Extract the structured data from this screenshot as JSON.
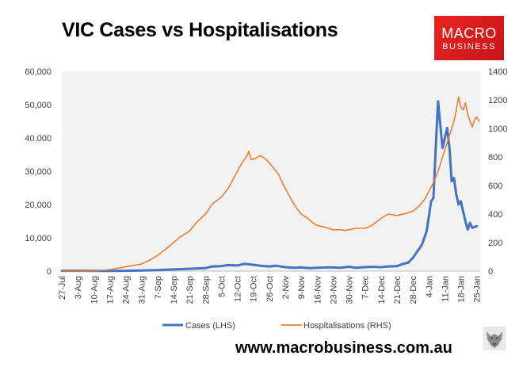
{
  "header": {
    "title": "VIC Cases vs Hospitalisations",
    "logo_line1": "MACRO",
    "logo_line2": "BUSINESS"
  },
  "footer": {
    "website": "www.macrobusiness.com.au"
  },
  "colors": {
    "cases": "#4472c4",
    "hospitalisations": "#ed7d31",
    "plot_bg": "#f2f2f2",
    "logo": "#e2231a"
  },
  "chart_data": {
    "type": "line",
    "title": "VIC Cases vs Hospitalisations",
    "x_tick_labels": [
      "27-Jul",
      "3-Aug",
      "10-Aug",
      "17-Aug",
      "24-Aug",
      "31-Aug",
      "7-Sep",
      "14-Sep",
      "21-Sep",
      "28-Sep",
      "5-Oct",
      "12-Oct",
      "19-Oct",
      "26-Oct",
      "2-Nov",
      "9-Nov",
      "16-Nov",
      "23-Nov",
      "30-Nov",
      "7-Dec",
      "14-Dec",
      "21-Dec",
      "28-Dec",
      "4-Jan",
      "11-Jan",
      "18-Jan",
      "25-Jan"
    ],
    "y_left": {
      "label": "",
      "range": [
        0,
        60000
      ],
      "ticks": [
        "0",
        "10,000",
        "20,000",
        "30,000",
        "40,000",
        "50,000",
        "60,000"
      ]
    },
    "y_right": {
      "label": "",
      "range": [
        0,
        1400
      ],
      "ticks": [
        "0",
        "200",
        "400",
        "600",
        "800",
        "1000",
        "1200",
        "1400"
      ]
    },
    "grid": false,
    "legend": {
      "placement": "bottom",
      "entries": [
        "Cases (LHS)",
        "Hospitalisations (RHS)"
      ]
    },
    "series": [
      {
        "name": "Cases (LHS)",
        "axis": "left",
        "points": [
          [
            "27-Jul",
            100
          ],
          [
            "3-Aug",
            100
          ],
          [
            "10-Aug",
            50
          ],
          [
            "17-Aug",
            40
          ],
          [
            "24-Aug",
            100
          ],
          [
            "31-Aug",
            200
          ],
          [
            "7-Sep",
            300
          ],
          [
            "14-Sep",
            500
          ],
          [
            "21-Sep",
            700
          ],
          [
            "28-Sep",
            900
          ],
          [
            "1-Oct",
            1400
          ],
          [
            "5-Oct",
            1500
          ],
          [
            "8-Oct",
            1800
          ],
          [
            "12-Oct",
            1700
          ],
          [
            "15-Oct",
            2200
          ],
          [
            "19-Oct",
            1900
          ],
          [
            "22-Oct",
            1600
          ],
          [
            "26-Oct",
            1400
          ],
          [
            "29-Oct",
            1600
          ],
          [
            "2-Nov",
            1200
          ],
          [
            "6-Nov",
            1000
          ],
          [
            "9-Nov",
            1100
          ],
          [
            "13-Nov",
            900
          ],
          [
            "16-Nov",
            1000
          ],
          [
            "20-Nov",
            1100
          ],
          [
            "23-Nov",
            1100
          ],
          [
            "26-Nov",
            1000
          ],
          [
            "30-Nov",
            1300
          ],
          [
            "3-Dec",
            1000
          ],
          [
            "7-Dec",
            1200
          ],
          [
            "10-Dec",
            1300
          ],
          [
            "14-Dec",
            1200
          ],
          [
            "17-Dec",
            1400
          ],
          [
            "21-Dec",
            1500
          ],
          [
            "23-Dec",
            2000
          ],
          [
            "26-Dec",
            2600
          ],
          [
            "28-Dec",
            4000
          ],
          [
            "30-Dec",
            6000
          ],
          [
            "1-Jan",
            8000
          ],
          [
            "3-Jan",
            12000
          ],
          [
            "5-Jan",
            21000
          ],
          [
            "6-Jan",
            22000
          ],
          [
            "7-Jan",
            37000
          ],
          [
            "8-Jan",
            51000
          ],
          [
            "9-Jan",
            44000
          ],
          [
            "10-Jan",
            37000
          ],
          [
            "11-Jan",
            40000
          ],
          [
            "12-Jan",
            43000
          ],
          [
            "13-Jan",
            37000
          ],
          [
            "14-Jan",
            27000
          ],
          [
            "15-Jan",
            28000
          ],
          [
            "16-Jan",
            23000
          ],
          [
            "17-Jan",
            20000
          ],
          [
            "18-Jan",
            21000
          ],
          [
            "19-Jan",
            18000
          ],
          [
            "20-Jan",
            15000
          ],
          [
            "21-Jan",
            12500
          ],
          [
            "22-Jan",
            14500
          ],
          [
            "23-Jan",
            13000
          ],
          [
            "25-Jan",
            13500
          ]
        ]
      },
      {
        "name": "Hospitalisations (RHS)",
        "axis": "right",
        "points": [
          [
            "27-Jul",
            0
          ],
          [
            "3-Aug",
            0
          ],
          [
            "10-Aug",
            0
          ],
          [
            "17-Aug",
            10
          ],
          [
            "24-Aug",
            30
          ],
          [
            "31-Aug",
            50
          ],
          [
            "4-Sep",
            80
          ],
          [
            "7-Sep",
            110
          ],
          [
            "11-Sep",
            160
          ],
          [
            "14-Sep",
            200
          ],
          [
            "17-Sep",
            240
          ],
          [
            "21-Sep",
            280
          ],
          [
            "24-Sep",
            340
          ],
          [
            "28-Sep",
            400
          ],
          [
            "1-Oct",
            470
          ],
          [
            "5-Oct",
            520
          ],
          [
            "8-Oct",
            580
          ],
          [
            "10-Oct",
            640
          ],
          [
            "12-Oct",
            700
          ],
          [
            "14-Oct",
            760
          ],
          [
            "16-Oct",
            800
          ],
          [
            "17-Oct",
            840
          ],
          [
            "18-Oct",
            780
          ],
          [
            "20-Oct",
            790
          ],
          [
            "22-Oct",
            810
          ],
          [
            "24-Oct",
            790
          ],
          [
            "26-Oct",
            760
          ],
          [
            "28-Oct",
            720
          ],
          [
            "30-Oct",
            680
          ],
          [
            "1-Nov",
            610
          ],
          [
            "3-Nov",
            550
          ],
          [
            "5-Nov",
            490
          ],
          [
            "7-Nov",
            440
          ],
          [
            "9-Nov",
            400
          ],
          [
            "12-Nov",
            370
          ],
          [
            "14-Nov",
            340
          ],
          [
            "16-Nov",
            320
          ],
          [
            "19-Nov",
            310
          ],
          [
            "21-Nov",
            300
          ],
          [
            "23-Nov",
            290
          ],
          [
            "26-Nov",
            290
          ],
          [
            "28-Nov",
            285
          ],
          [
            "30-Nov",
            290
          ],
          [
            "3-Dec",
            300
          ],
          [
            "7-Dec",
            300
          ],
          [
            "10-Dec",
            320
          ],
          [
            "14-Dec",
            370
          ],
          [
            "17-Dec",
            400
          ],
          [
            "21-Dec",
            390
          ],
          [
            "24-Dec",
            400
          ],
          [
            "28-Dec",
            420
          ],
          [
            "31-Dec",
            460
          ],
          [
            "2-Jan",
            500
          ],
          [
            "4-Jan",
            560
          ],
          [
            "6-Jan",
            620
          ],
          [
            "8-Jan",
            700
          ],
          [
            "10-Jan",
            800
          ],
          [
            "11-Jan",
            850
          ],
          [
            "12-Jan",
            900
          ],
          [
            "13-Jan",
            950
          ],
          [
            "14-Jan",
            1000
          ],
          [
            "15-Jan",
            1050
          ],
          [
            "16-Jan",
            1130
          ],
          [
            "17-Jan",
            1220
          ],
          [
            "18-Jan",
            1150
          ],
          [
            "19-Jan",
            1130
          ],
          [
            "20-Jan",
            1180
          ],
          [
            "21-Jan",
            1100
          ],
          [
            "22-Jan",
            1050
          ],
          [
            "23-Jan",
            1010
          ],
          [
            "24-Jan",
            1060
          ],
          [
            "25-Jan",
            1080
          ],
          [
            "26-Jan",
            1050
          ]
        ]
      }
    ]
  }
}
